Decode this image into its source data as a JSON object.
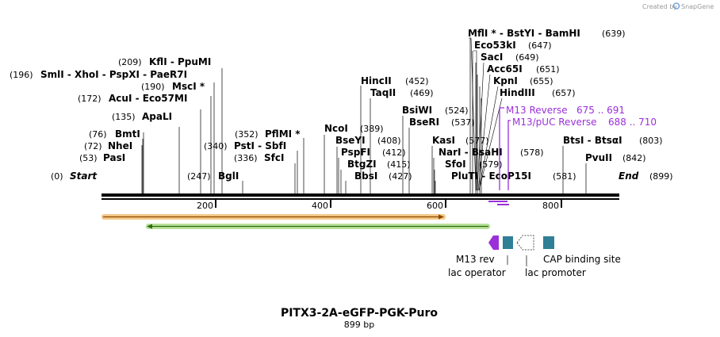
{
  "credit": {
    "prefix": "Created by",
    "brand": "SnapGene"
  },
  "title": "PITX3-2A-eGFP-PGK-Puro",
  "length_label": "899 bp",
  "ruler_ticks": [
    {
      "pos": 200,
      "label": "200"
    },
    {
      "pos": 400,
      "label": "400"
    },
    {
      "pos": 600,
      "label": "600"
    },
    {
      "pos": 800,
      "label": "800"
    }
  ],
  "sites": [
    {
      "pos_label": "(0)",
      "name": "Start",
      "terminal": true,
      "pos": 0
    },
    {
      "pos_label": "(53)",
      "name": "PasI",
      "pos": 53
    },
    {
      "pos_label": "(72)",
      "name": "NheI",
      "pos": 72
    },
    {
      "pos_label": "(76)",
      "name": "BmtI",
      "pos": 76
    },
    {
      "pos_label": "(135)",
      "name": "ApaLI",
      "pos": 135
    },
    {
      "pos_label": "(172)",
      "name": "AcuI - Eco57MI",
      "pos": 172
    },
    {
      "pos_label": "(190)",
      "name": "MscI *",
      "pos": 190
    },
    {
      "pos_label": "(196)",
      "name": "SmlI - XhoI - PspXI - PaeR7I",
      "pos": 196
    },
    {
      "pos_label": "(209)",
      "name": "KflI - PpuMI",
      "pos": 209
    },
    {
      "pos_label": "(247)",
      "name": "BglI",
      "pos": 247
    },
    {
      "pos_label": "(336)",
      "name": "SfcI",
      "pos": 336
    },
    {
      "pos_label": "(340)",
      "name": "PstI - SbfI",
      "pos": 340
    },
    {
      "pos_label": "(352)",
      "name": "PflMI *",
      "pos": 352
    },
    {
      "pos_label": "(389)",
      "name": "NcoI",
      "pos": 389
    },
    {
      "pos_label": "(408)",
      "name": "BseYI",
      "pos": 408
    },
    {
      "pos_label": "(412)",
      "name": "PspFI",
      "pos": 412
    },
    {
      "pos_label": "(415)",
      "name": "BtgZI",
      "pos": 415
    },
    {
      "pos_label": "(427)",
      "name": "BbsI",
      "pos": 427
    },
    {
      "pos_label": "(452)",
      "name": "HincII",
      "pos": 452
    },
    {
      "pos_label": "(469)",
      "name": "TaqII",
      "pos": 469
    },
    {
      "pos_label": "(524)",
      "name": "BsiWI",
      "pos": 524
    },
    {
      "pos_label": "(537)",
      "name": "BseRI",
      "pos": 537
    },
    {
      "pos_label": "(577)",
      "name": "KasI",
      "pos": 577
    },
    {
      "pos_label": "(578)",
      "name": "NarI - BsaHI",
      "pos": 578
    },
    {
      "pos_label": "(579)",
      "name": "SfoI",
      "pos": 579
    },
    {
      "pos_label": "(581)",
      "name": "PluTI - EcoP15I",
      "pos": 581
    },
    {
      "pos_label": "(639)",
      "name": "MflI * - BstYI - BamHI",
      "pos": 639
    },
    {
      "pos_label": "(647)",
      "name": "Eco53kI",
      "pos": 647
    },
    {
      "pos_label": "(649)",
      "name": "SacI",
      "pos": 649
    },
    {
      "pos_label": "(651)",
      "name": "Acc65I",
      "pos": 651
    },
    {
      "pos_label": "(655)",
      "name": "KpnI",
      "pos": 655
    },
    {
      "pos_label": "(657)",
      "name": "HindIII",
      "pos": 657
    },
    {
      "pos_label": "(803)",
      "name": "BtsI - BtsαI",
      "pos": 803
    },
    {
      "pos_label": "(842)",
      "name": "PvuII",
      "pos": 842
    },
    {
      "pos_label": "(899)",
      "name": "End",
      "terminal": true,
      "pos": 899
    }
  ],
  "primers": [
    {
      "name": "M13 Reverse",
      "range": "675 .. 691",
      "start": 675,
      "end": 691
    },
    {
      "name": "M13/pUC Reverse",
      "range": "688 .. 710",
      "start": 688,
      "end": 710
    }
  ],
  "features": [
    {
      "name": "M13 rev",
      "start": 675,
      "end": 691
    },
    {
      "name": "lac operator",
      "start": 699,
      "end": 715
    },
    {
      "name": "lac promoter",
      "start": 723,
      "end": 753
    },
    {
      "name": "CAP binding site",
      "start": 767,
      "end": 788
    }
  ],
  "colors": {
    "orange_bar": "#f0a040",
    "green_bar": "#7fc241",
    "primer": "#9b30d9",
    "lac_box": "#2f7f96"
  }
}
